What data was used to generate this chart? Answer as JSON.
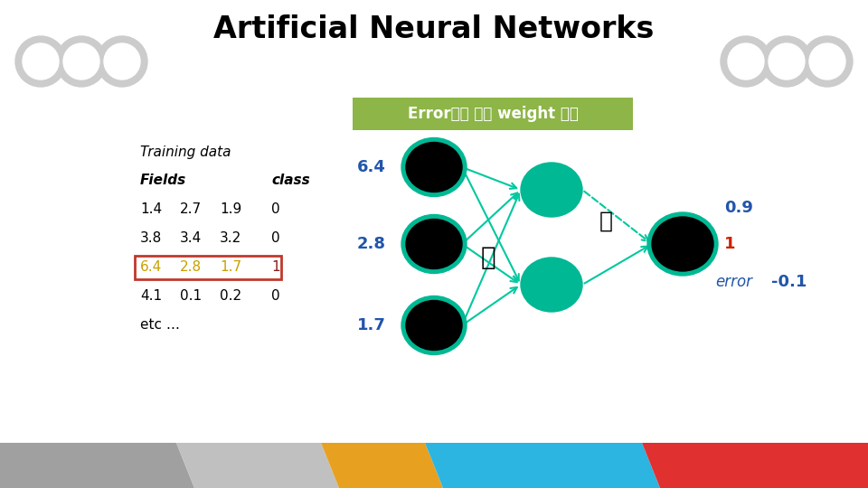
{
  "title": "Artificial Neural Networks",
  "title_fontsize": 24,
  "title_color": "#000000",
  "bg_color": "#ffffff",
  "banner_text": "Error값에 따라 weight 조정",
  "banner_bg": "#8db547",
  "banner_text_color": "#ffffff",
  "table_header1": "Training data",
  "table_header2_col1": "Fields",
  "table_header2_col2": "class",
  "table_rows": [
    [
      "1.4",
      "2.7",
      "1.9",
      "0",
      false
    ],
    [
      "3.8",
      "3.4",
      "3.2",
      "0",
      false
    ],
    [
      "6.4",
      "2.8",
      "1.7",
      "1",
      true
    ],
    [
      "4.1",
      "0.1",
      "0.2",
      "0",
      false
    ]
  ],
  "table_etc": "etc …",
  "highlight_color": "#c0392b",
  "highlight_row_text_color": "#c8a000",
  "highlight_class_color": "#8b1a1a",
  "input_labels": [
    "6.4",
    "2.8",
    "1.7"
  ],
  "input_label_color": "#2255aa",
  "output_value": "0.9",
  "output_target": "1",
  "output_error": "-0.1",
  "output_value_color": "#2255aa",
  "output_target_color": "#cc2200",
  "output_error_color": "#2255aa",
  "error_label": "error",
  "node_input_color": "#000000",
  "node_input_border": "#00b894",
  "node_hidden_color": "#00b894",
  "node_output_color": "#000000",
  "node_output_border": "#00b894",
  "arrow_color": "#00c8a0",
  "deco_circle_color": "#cccccc",
  "deco_circle_inner": "#ffffff"
}
